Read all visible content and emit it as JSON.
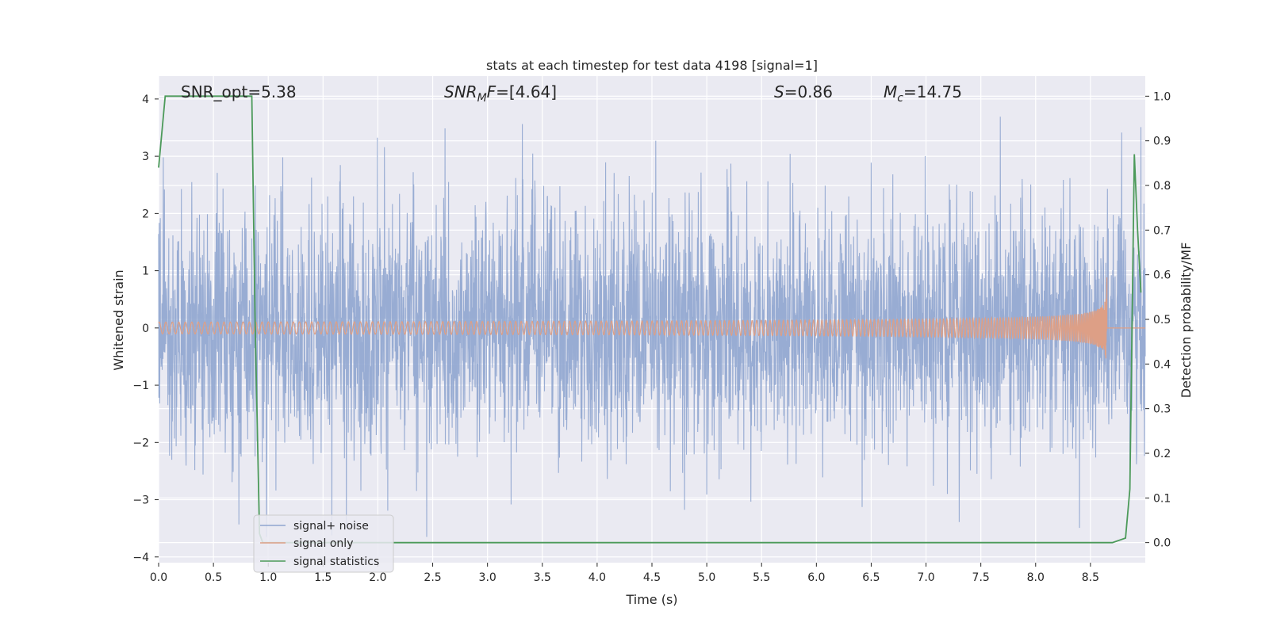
{
  "chart_data": {
    "type": "line",
    "title": "stats at each timestep for test data 4198 [signal=1]",
    "xlabel": "Time (s)",
    "ylabel": "Whitened strain",
    "ylabel_right": "Detection probability/MF",
    "xlim": [
      0.0,
      9.0
    ],
    "ylim": [
      -4.1,
      4.4
    ],
    "ylim_right": [
      -0.045,
      1.045
    ],
    "x_ticks": [
      "0.0",
      "0.5",
      "1.0",
      "1.5",
      "2.0",
      "2.5",
      "3.0",
      "3.5",
      "4.0",
      "4.5",
      "5.0",
      "5.5",
      "6.0",
      "6.5",
      "7.0",
      "7.5",
      "8.0",
      "8.5"
    ],
    "y_ticks": [
      "4",
      "3",
      "2",
      "1",
      "0",
      "−1",
      "−2",
      "−3",
      "−4"
    ],
    "y_ticks_right": [
      "1.0",
      "0.9",
      "0.8",
      "0.7",
      "0.6",
      "0.5",
      "0.4",
      "0.3",
      "0.2",
      "0.1",
      "0.0"
    ],
    "grid": true,
    "legend_position": "lower-left",
    "annotations": {
      "snr_opt": "SNR_opt=5.38",
      "snr_mf_sym": "SNR",
      "snr_mf_sub": "M",
      "snr_mf_rest": "F=[4.64]",
      "s_sym": "S",
      "s_rest": "=0.86",
      "mc_sym": "M",
      "mc_sub": "c",
      "mc_rest": "=14.75"
    },
    "series": [
      {
        "name": "signal+ noise",
        "color": "#8fa5cf",
        "axis": "left",
        "description_stats": {
          "approx_range": [
            -3.65,
            4.0
          ],
          "mean": 0.0
        }
      },
      {
        "name": "signal only",
        "color": "#dd9f86",
        "axis": "left",
        "chirp_end_time": 8.65,
        "peak_amplitude": 0.9
      },
      {
        "name": "signal statistics",
        "color": "#4c9a5a",
        "axis": "right",
        "x": [
          0.0,
          0.06,
          0.1,
          0.3,
          0.6,
          0.85,
          0.88,
          0.92,
          0.95,
          1.0,
          2.0,
          4.0,
          6.0,
          8.0,
          8.7,
          8.82,
          8.86,
          8.9,
          8.93,
          8.96
        ],
        "y": [
          0.84,
          1.0,
          1.0,
          1.0,
          1.0,
          1.0,
          0.5,
          0.02,
          0.0,
          0.0,
          0.0,
          0.0,
          0.0,
          0.0,
          0.0,
          0.01,
          0.12,
          0.87,
          0.7,
          0.56
        ]
      }
    ]
  }
}
